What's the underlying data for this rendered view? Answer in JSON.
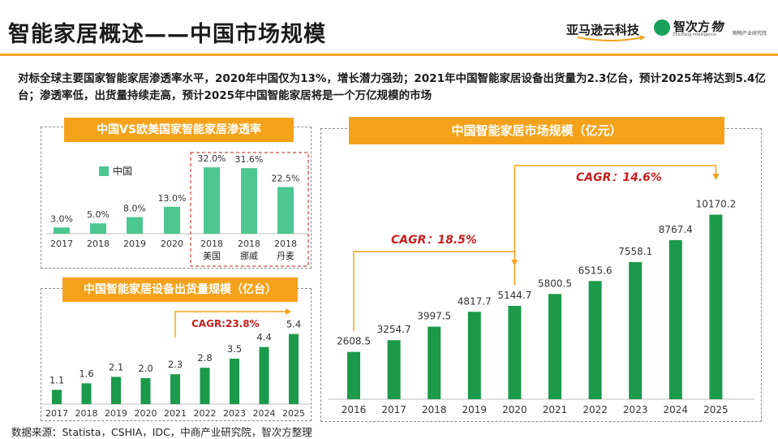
{
  "header": {
    "title": "智能家居概述——中国市场规模",
    "logos": {
      "amazon": "亚马逊云科技",
      "zhicifang": "智次方",
      "zhicifang_sub": "Zhicifang Intelligence",
      "wuzhi": "物",
      "wuzhi_sub": "物物产业研究院"
    }
  },
  "summary": "对标全球主要国家智能家居渗透率水平，2020年中国仅为13%，增长潜力强劲；2021年中国智能家居设备出货量为2.3亿台，预计2025年将达到5.4亿台；渗透率低，出货量持续走高，预计2025年中国智能家居将是一个万亿规模的市场",
  "source": "数据来源：Statista，CSHIA，IDC，中商产业研究院，智次方整理",
  "colors": {
    "bar": "#4cc790",
    "bar_dark": "#1a9a4a",
    "accent": "#f5a21b",
    "cagr": "#c81e1e"
  },
  "chart_data": [
    {
      "type": "bar",
      "title": "中国VS欧美国家智能家居渗透率",
      "legend": [
        "中国"
      ],
      "categories": [
        "2017",
        "2018",
        "2019",
        "2020",
        "2018|美国",
        "2018|挪威",
        "2018|丹麦"
      ],
      "category_years": [
        "2017",
        "2018",
        "2019",
        "2020",
        "2018",
        "2018",
        "2018"
      ],
      "category_countries": [
        "",
        "",
        "",
        "",
        "美国",
        "挪威",
        "丹麦"
      ],
      "values": [
        3.0,
        5.0,
        8.0,
        13.0,
        32.0,
        31.6,
        22.5
      ],
      "labels": [
        "3.0%",
        "5.0%",
        "8.0%",
        "13.0%",
        "32.0%",
        "31.6%",
        "22.5%"
      ],
      "ylim": [
        0,
        36
      ]
    },
    {
      "type": "bar",
      "title": "中国智能家居设备出货量规模（亿台）",
      "categories": [
        "2017",
        "2018",
        "2019",
        "2020",
        "2021",
        "2022",
        "2023",
        "2024",
        "2025"
      ],
      "values": [
        1.1,
        1.6,
        2.1,
        2.0,
        2.3,
        2.8,
        3.5,
        4.4,
        5.4
      ],
      "labels": [
        "1.1",
        "1.6",
        "2.1",
        "2.0",
        "2.3",
        "2.8",
        "3.5",
        "4.4",
        "5.4"
      ],
      "annotation": "CAGR:23.8%",
      "ylim": [
        0,
        6.5
      ]
    },
    {
      "type": "bar",
      "title": "中国智能家居市场规模（亿元）",
      "categories": [
        "2016",
        "2017",
        "2018",
        "2019",
        "2020",
        "2021",
        "2022",
        "2023",
        "2024",
        "2025"
      ],
      "values": [
        2608.5,
        3254.7,
        3997.5,
        4817.7,
        5144.7,
        5800.5,
        6515.6,
        7558.1,
        8767.4,
        10170.2
      ],
      "labels": [
        "2608.5",
        "3254.7",
        "3997.5",
        "4817.7",
        "5144.7",
        "5800.5",
        "6515.6",
        "7558.1",
        "8767.4",
        "10170.2"
      ],
      "annotations": [
        "CAGR：18.5%",
        "CAGR：14.6%"
      ],
      "ylim": [
        0,
        11000
      ]
    }
  ]
}
